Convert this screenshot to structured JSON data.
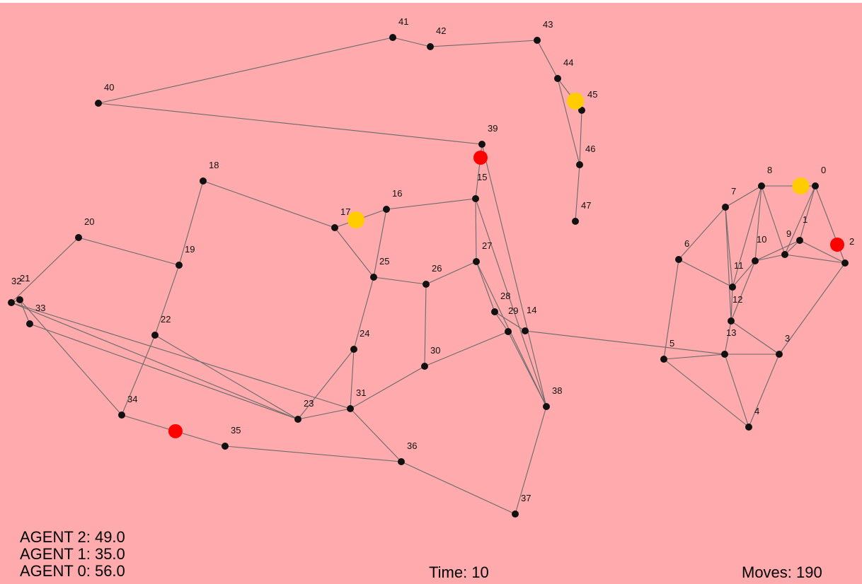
{
  "colors": {
    "background": "#ffaaad",
    "edge": "#6a6a6a",
    "node": "#111111",
    "agent_red": "#ff0000",
    "agent_yellow": "#ffcc00"
  },
  "nodes": [
    {
      "id": "0"
    },
    {
      "id": "1"
    },
    {
      "id": "2"
    },
    {
      "id": "3"
    },
    {
      "id": "4"
    },
    {
      "id": "5"
    },
    {
      "id": "6"
    },
    {
      "id": "7"
    },
    {
      "id": "8"
    },
    {
      "id": "9"
    },
    {
      "id": "10"
    },
    {
      "id": "11"
    },
    {
      "id": "12"
    },
    {
      "id": "13"
    },
    {
      "id": "14"
    },
    {
      "id": "15"
    },
    {
      "id": "16"
    },
    {
      "id": "17"
    },
    {
      "id": "18"
    },
    {
      "id": "19"
    },
    {
      "id": "20"
    },
    {
      "id": "21"
    },
    {
      "id": "22"
    },
    {
      "id": "23"
    },
    {
      "id": "24"
    },
    {
      "id": "25"
    },
    {
      "id": "26"
    },
    {
      "id": "27"
    },
    {
      "id": "28"
    },
    {
      "id": "29"
    },
    {
      "id": "30"
    },
    {
      "id": "31"
    },
    {
      "id": "32"
    },
    {
      "id": "33"
    },
    {
      "id": "34"
    },
    {
      "id": "35"
    },
    {
      "id": "36"
    },
    {
      "id": "37"
    },
    {
      "id": "38"
    },
    {
      "id": "39"
    },
    {
      "id": "40"
    },
    {
      "id": "41"
    },
    {
      "id": "42"
    },
    {
      "id": "43"
    },
    {
      "id": "44"
    },
    {
      "id": "45"
    },
    {
      "id": "46"
    },
    {
      "id": "47"
    }
  ],
  "edges": [
    [
      "40",
      "41"
    ],
    [
      "41",
      "42"
    ],
    [
      "42",
      "43"
    ],
    [
      "43",
      "44"
    ],
    [
      "44",
      "45"
    ],
    [
      "44",
      "46"
    ],
    [
      "45",
      "46"
    ],
    [
      "46",
      "47"
    ],
    [
      "40",
      "39"
    ],
    [
      "39",
      "15"
    ],
    [
      "39",
      "38"
    ],
    [
      "15",
      "16"
    ],
    [
      "16",
      "17"
    ],
    [
      "16",
      "25"
    ],
    [
      "17",
      "18"
    ],
    [
      "17",
      "25"
    ],
    [
      "18",
      "19"
    ],
    [
      "19",
      "20"
    ],
    [
      "19",
      "22"
    ],
    [
      "20",
      "32"
    ],
    [
      "32",
      "21"
    ],
    [
      "21",
      "33"
    ],
    [
      "21",
      "34"
    ],
    [
      "32",
      "31"
    ],
    [
      "32",
      "23"
    ],
    [
      "33",
      "23"
    ],
    [
      "22",
      "34"
    ],
    [
      "22",
      "23"
    ],
    [
      "23",
      "24"
    ],
    [
      "23",
      "31"
    ],
    [
      "24",
      "25"
    ],
    [
      "24",
      "31"
    ],
    [
      "25",
      "26"
    ],
    [
      "26",
      "27"
    ],
    [
      "26",
      "30"
    ],
    [
      "27",
      "15"
    ],
    [
      "27",
      "28"
    ],
    [
      "27",
      "38"
    ],
    [
      "28",
      "29"
    ],
    [
      "28",
      "14"
    ],
    [
      "15",
      "38"
    ],
    [
      "29",
      "30"
    ],
    [
      "29",
      "38"
    ],
    [
      "30",
      "31"
    ],
    [
      "31",
      "36"
    ],
    [
      "36",
      "37"
    ],
    [
      "37",
      "38"
    ],
    [
      "36",
      "35"
    ],
    [
      "35",
      "34"
    ],
    [
      "14",
      "13"
    ],
    [
      "5",
      "13"
    ],
    [
      "5",
      "4"
    ],
    [
      "5",
      "6"
    ],
    [
      "6",
      "7"
    ],
    [
      "6",
      "11"
    ],
    [
      "7",
      "8"
    ],
    [
      "7",
      "12"
    ],
    [
      "7",
      "11"
    ],
    [
      "8",
      "0"
    ],
    [
      "8",
      "11"
    ],
    [
      "8",
      "9"
    ],
    [
      "8",
      "10"
    ],
    [
      "0",
      "1"
    ],
    [
      "0",
      "9"
    ],
    [
      "0",
      "2"
    ],
    [
      "1",
      "9"
    ],
    [
      "1",
      "10"
    ],
    [
      "1",
      "2"
    ],
    [
      "9",
      "10"
    ],
    [
      "9",
      "2"
    ],
    [
      "10",
      "11"
    ],
    [
      "10",
      "12"
    ],
    [
      "11",
      "12"
    ],
    [
      "12",
      "13"
    ],
    [
      "13",
      "3"
    ],
    [
      "13",
      "4"
    ],
    [
      "12",
      "3"
    ],
    [
      "3",
      "2"
    ],
    [
      "3",
      "4"
    ]
  ],
  "agents": [
    {
      "color": "red",
      "at": "39"
    },
    {
      "color": "red",
      "at": "2"
    },
    {
      "color": "red",
      "on_edge": [
        "34",
        "35"
      ]
    },
    {
      "color": "yellow",
      "at": "45"
    },
    {
      "color": "yellow",
      "at": "17"
    },
    {
      "color": "yellow",
      "on_edge": [
        "8",
        "0"
      ]
    }
  ],
  "hud": {
    "scores": [
      "AGENT 2: 49.0",
      "AGENT 1: 35.0",
      "AGENT 0: 56.0"
    ],
    "time": "Time: 10",
    "moves": "Moves: 190"
  }
}
